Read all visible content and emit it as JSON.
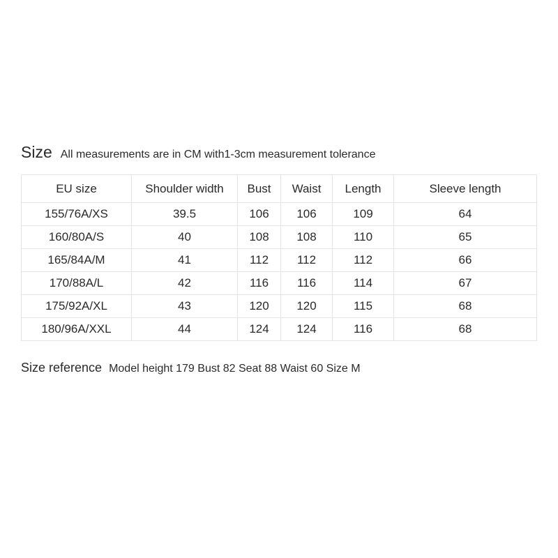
{
  "header": {
    "title": "Size",
    "subtitle": "All measurements are in CM with1-3cm measurement tolerance"
  },
  "table": {
    "type": "table",
    "background_color": "#ffffff",
    "border_color": "#e5e5e5",
    "text_color": "#2a2a2a",
    "header_fontsize": 17,
    "cell_fontsize": 17,
    "columns": [
      {
        "key": "eu_size",
        "label": "EU size",
        "width": 158,
        "align": "center"
      },
      {
        "key": "shoulder",
        "label": "Shoulder width",
        "width": 152,
        "align": "center"
      },
      {
        "key": "bust",
        "label": "Bust",
        "width": 62,
        "align": "center"
      },
      {
        "key": "waist",
        "label": "Waist",
        "width": 74,
        "align": "center"
      },
      {
        "key": "length",
        "label": "Length",
        "width": 88,
        "align": "center"
      },
      {
        "key": "sleeve",
        "label": "Sleeve length",
        "width": 166,
        "align": "center"
      }
    ],
    "rows": [
      {
        "eu_size": "155/76A/XS",
        "shoulder": "39.5",
        "bust": "106",
        "waist": "106",
        "length": "109",
        "sleeve": "64"
      },
      {
        "eu_size": "160/80A/S",
        "shoulder": "40",
        "bust": "108",
        "waist": "108",
        "length": "110",
        "sleeve": "65"
      },
      {
        "eu_size": "165/84A/M",
        "shoulder": "41",
        "bust": "112",
        "waist": "112",
        "length": "112",
        "sleeve": "66"
      },
      {
        "eu_size": "170/88A/L",
        "shoulder": "42",
        "bust": "116",
        "waist": "116",
        "length": "114",
        "sleeve": "67"
      },
      {
        "eu_size": "175/92A/XL",
        "shoulder": "43",
        "bust": "120",
        "waist": "120",
        "length": "115",
        "sleeve": "68"
      },
      {
        "eu_size": "180/96A/XXL",
        "shoulder": "44",
        "bust": "124",
        "waist": "124",
        "length": "116",
        "sleeve": "68"
      }
    ]
  },
  "reference": {
    "title": "Size reference",
    "text": "Model  height 179  Bust 82  Seat 88  Waist 60  Size M"
  }
}
